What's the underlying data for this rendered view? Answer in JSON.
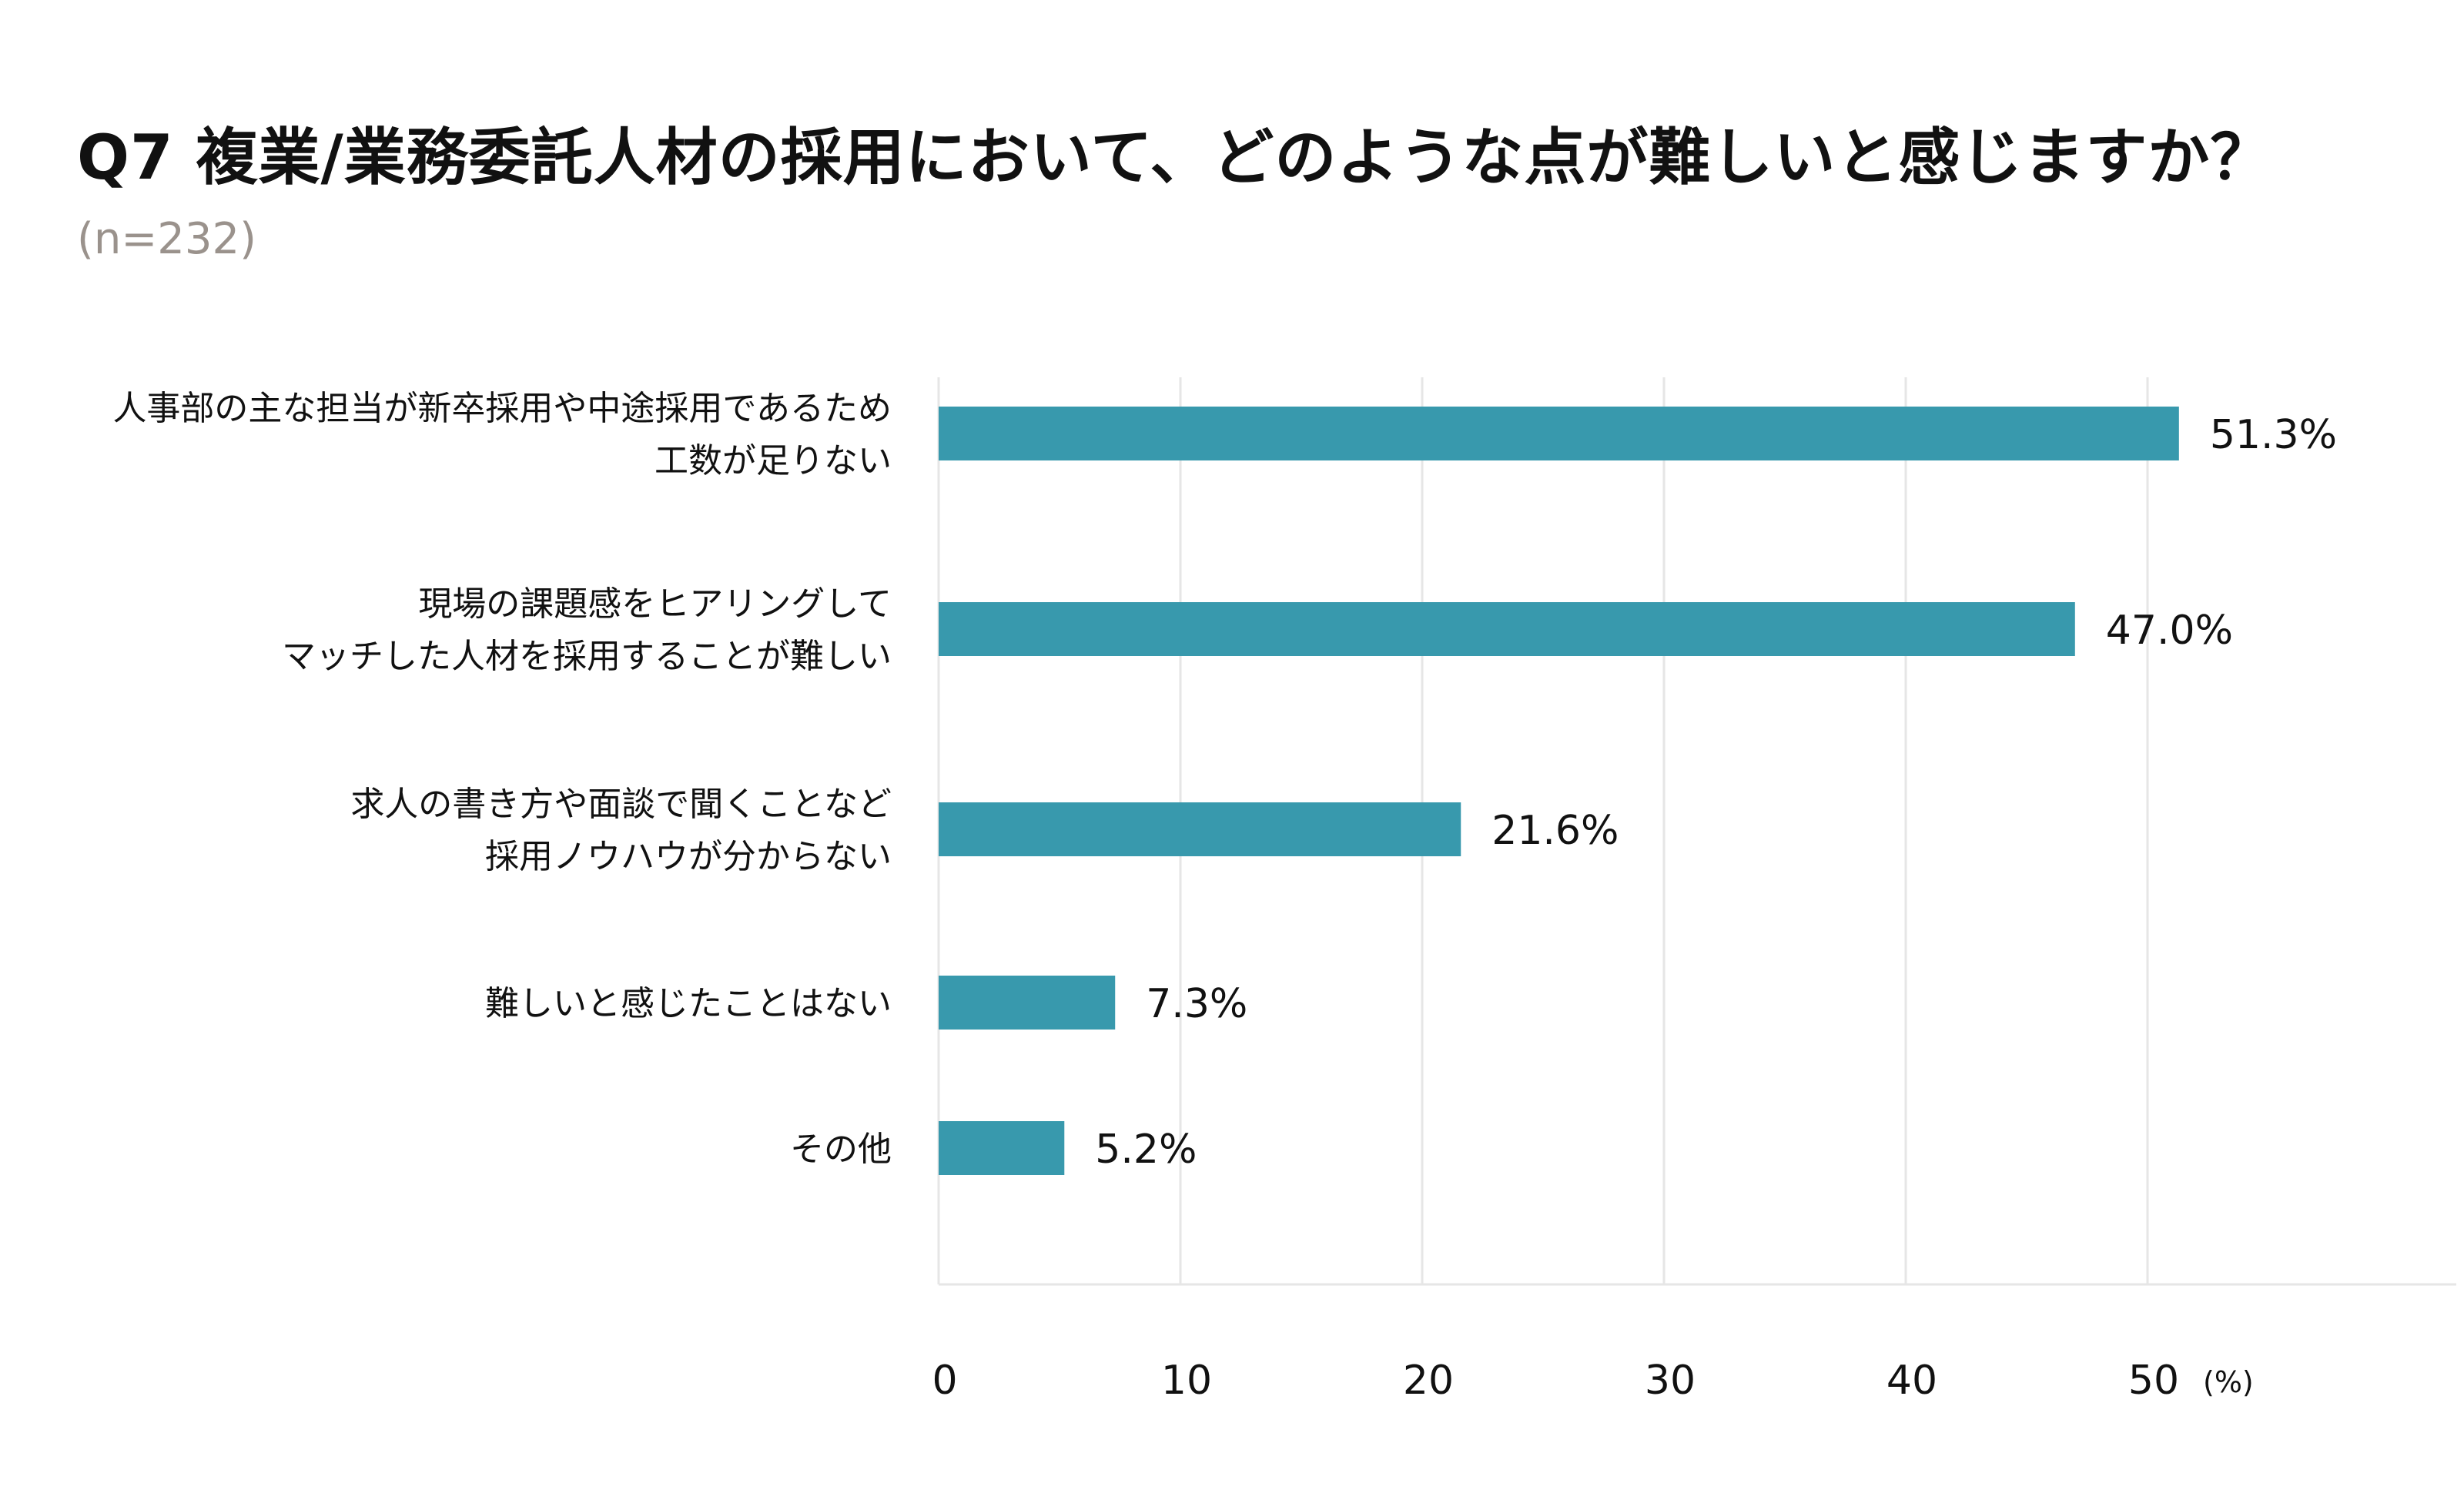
{
  "chart_data": {
    "type": "bar",
    "orientation": "horizontal",
    "title": "Q7 複業/業務委託人材の採用において、どのような点が難しいと感じますか？",
    "subtitle": "(n=232)",
    "categories": [
      [
        "人事部の主な担当が新卒採用や中途採用であるため",
        "工数が足りない"
      ],
      [
        "現場の課題感をヒアリングして",
        "マッチした人材を採用することが難しい"
      ],
      [
        "求人の書き方や面談で聞くことなど",
        "採用ノウハウが分からない"
      ],
      [
        "難しいと感じたことはない"
      ],
      [
        "その他"
      ]
    ],
    "values": [
      51.3,
      47.0,
      21.6,
      7.3,
      5.2
    ],
    "value_labels": [
      "51.3%",
      "47.0%",
      "21.6%",
      "7.3%",
      "5.2%"
    ],
    "x_ticks": [
      0,
      10,
      20,
      30,
      40,
      50
    ],
    "x_tick_labels": [
      "0",
      "10",
      "20",
      "30",
      "40",
      "50"
    ],
    "x_unit": "(%)",
    "xlim": [
      0,
      62.5
    ],
    "grid": true,
    "bar_color": "#3899ad",
    "grid_color": "#e6e6e6",
    "text_color": "#111111"
  }
}
